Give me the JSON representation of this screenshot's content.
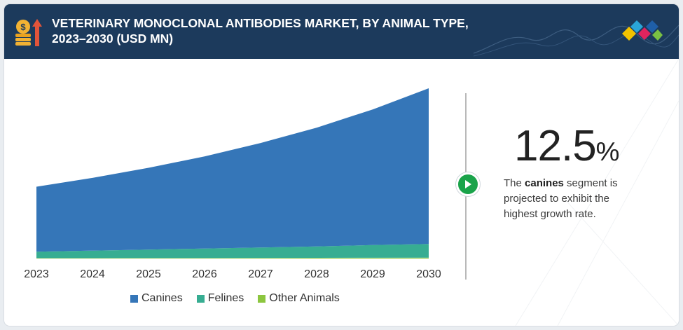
{
  "header": {
    "title_line1": "VETERINARY MONOCLONAL ANTIBODIES MARKET, BY ANIMAL TYPE,",
    "title_line2": "2023–2030 (USD MN)"
  },
  "chart_data": {
    "type": "area",
    "stacked": true,
    "title": "VETERINARY MONOCLONAL ANTIBODIES MARKET, BY ANIMAL TYPE, 2023–2030 (USD MN)",
    "x": [
      "2023",
      "2024",
      "2025",
      "2026",
      "2027",
      "2028",
      "2029",
      "2030"
    ],
    "series": [
      {
        "name": "Other Animals",
        "color": "#8cc63f",
        "values": [
          0.6,
          0.7,
          0.8,
          0.9,
          1.0,
          1.1,
          1.2,
          1.3
        ]
      },
      {
        "name": "Felines",
        "color": "#37ad92",
        "values": [
          10,
          11.5,
          13,
          14.5,
          16,
          17.5,
          19.5,
          21
        ]
      },
      {
        "name": "Canines",
        "color": "#3576b8",
        "values": [
          100,
          112,
          126,
          142,
          161,
          183,
          209,
          240
        ]
      }
    ],
    "y_axis_labels_shown": false,
    "grid": false,
    "legend_position": "bottom",
    "legend_order": [
      "Canines",
      "Felines",
      "Other Animals"
    ]
  },
  "legend": {
    "canines": "Canines",
    "felines": "Felines",
    "other": "Other Animals"
  },
  "colors": {
    "header_bg": "#1c3a5c",
    "canines": "#3576b8",
    "felines": "#37ad92",
    "other_animals": "#8cc63f",
    "play_button": "#1aa34a"
  },
  "callout": {
    "value": "12.5",
    "unit": "%",
    "text_before": "The ",
    "text_bold": "canines",
    "text_after": " segment is projected to exhibit the highest growth rate."
  },
  "icons": {
    "header_icon": "money-growth-icon",
    "logo": "brand-diamond-logo",
    "play": "play-icon"
  }
}
